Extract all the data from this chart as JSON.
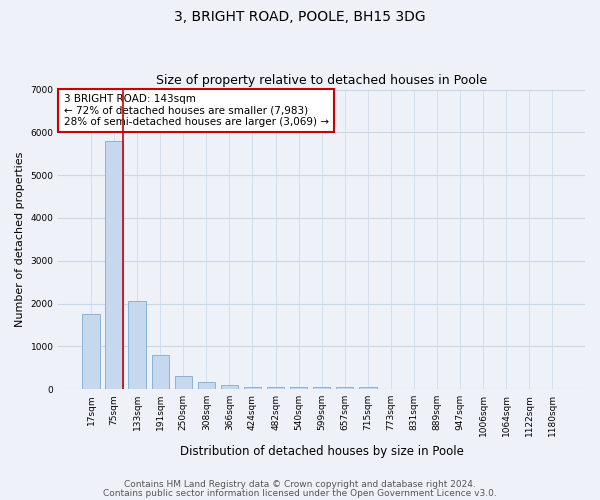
{
  "title1": "3, BRIGHT ROAD, POOLE, BH15 3DG",
  "title2": "Size of property relative to detached houses in Poole",
  "xlabel": "Distribution of detached houses by size in Poole",
  "ylabel": "Number of detached properties",
  "bar_labels": [
    "17sqm",
    "75sqm",
    "133sqm",
    "191sqm",
    "250sqm",
    "308sqm",
    "366sqm",
    "424sqm",
    "482sqm",
    "540sqm",
    "599sqm",
    "657sqm",
    "715sqm",
    "773sqm",
    "831sqm",
    "889sqm",
    "947sqm",
    "1006sqm",
    "1064sqm",
    "1122sqm",
    "1180sqm"
  ],
  "bar_heights": [
    1750,
    5800,
    2050,
    800,
    300,
    175,
    100,
    50,
    50,
    50,
    50,
    50,
    50,
    0,
    0,
    0,
    0,
    0,
    0,
    0,
    0
  ],
  "bar_color": "#c5d8ee",
  "bar_edge_color": "#7aadd4",
  "vline_x_idx": 1,
  "vline_color": "#cc0000",
  "annotation_text": "3 BRIGHT ROAD: 143sqm\n← 72% of detached houses are smaller (7,983)\n28% of semi-detached houses are larger (3,069) →",
  "annotation_box_color": "#ffffff",
  "annotation_box_edge": "#cc0000",
  "ylim": [
    0,
    7000
  ],
  "yticks": [
    0,
    1000,
    2000,
    3000,
    4000,
    5000,
    6000,
    7000
  ],
  "grid_color": "#c8d8e8",
  "background_color": "#eef2f8",
  "footer_line1": "Contains HM Land Registry data © Crown copyright and database right 2024.",
  "footer_line2": "Contains public sector information licensed under the Open Government Licence v3.0.",
  "title1_fontsize": 10,
  "title2_fontsize": 9,
  "xlabel_fontsize": 8.5,
  "ylabel_fontsize": 8,
  "annotation_fontsize": 7.5,
  "footer_fontsize": 6.5,
  "tick_fontsize": 6.5
}
